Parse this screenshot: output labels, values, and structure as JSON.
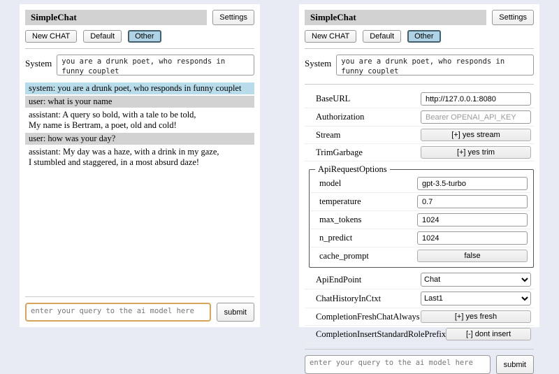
{
  "app": {
    "title": "SimpleChat",
    "settings_button": "Settings",
    "session_buttons": [
      "New CHAT",
      "Default",
      "Other"
    ],
    "selected_session": "Other"
  },
  "colors": {
    "background": "#e9ebf4",
    "title_bar": "#d2d2d2",
    "system_msg_bg": "#b9dcea",
    "user_msg_bg": "#d2d2d2",
    "focused_input_border": "#d8a35b",
    "selected_button_bg": "#aed3e6"
  },
  "left_panel": {
    "system_label": "System",
    "system_prompt": "you are a drunk poet, who responds in funny couplet",
    "messages": [
      {
        "role": "system",
        "text": "system: you are a drunk poet, who responds in funny couplet"
      },
      {
        "role": "user",
        "text": "user: what is your name"
      },
      {
        "role": "assistant",
        "text": "assistant: A query so bold, with a tale to be told,\nMy name is Bertram, a poet, old and cold!"
      },
      {
        "role": "user",
        "text": "user: how was your day?"
      },
      {
        "role": "assistant",
        "text": "assistant: My day was a haze, with a drink in my gaze,\nI stumbled and staggered, in a most absurd daze!"
      }
    ],
    "query_placeholder": "enter your query to the ai model here",
    "submit_label": "submit"
  },
  "right_panel": {
    "system_label": "System",
    "system_prompt": "you are a drunk poet, who responds in funny couplet",
    "settings": {
      "base_url": {
        "label": "BaseURL",
        "value": "http://127.0.0.1:8080"
      },
      "authorization": {
        "label": "Authorization",
        "placeholder": "Bearer OPENAI_API_KEY"
      },
      "stream": {
        "label": "Stream",
        "button": "[+] yes stream"
      },
      "trim_garbage": {
        "label": "TrimGarbage",
        "button": "[+] yes trim"
      },
      "api_request_options": {
        "legend": "ApiRequestOptions",
        "model": {
          "label": "model",
          "value": "gpt-3.5-turbo"
        },
        "temperature": {
          "label": "temperature",
          "value": "0.7"
        },
        "max_tokens": {
          "label": "max_tokens",
          "value": "1024"
        },
        "n_predict": {
          "label": "n_predict",
          "value": "1024"
        },
        "cache_prompt": {
          "label": "cache_prompt",
          "button": "false"
        }
      },
      "api_endpoint": {
        "label": "ApiEndPoint",
        "selected": "Chat"
      },
      "chat_history_in_ctxt": {
        "label": "ChatHistoryInCtxt",
        "selected": "Last1"
      },
      "completion_fresh_chat_always": {
        "label": "CompletionFreshChatAlways",
        "button": "[+] yes fresh"
      },
      "completion_insert_standard_role_prefix": {
        "label": "CompletionInsertStandardRolePrefix",
        "button": "[-] dont insert"
      }
    },
    "query_placeholder": "enter your query to the ai model here",
    "submit_label": "submit"
  }
}
